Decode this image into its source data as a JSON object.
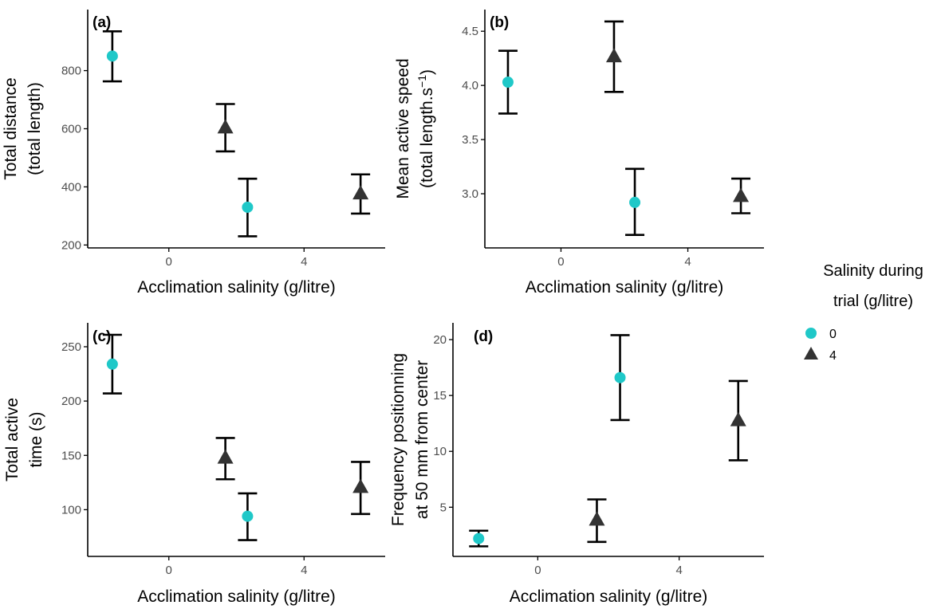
{
  "colors": {
    "series_0": "#1fc8c8",
    "series_4": "#333333",
    "axis": "#000000",
    "errorbar": "#000000"
  },
  "legend": {
    "title_line1": "Salinity during",
    "title_line2": "trial (g/litre)",
    "entries": [
      {
        "label": "0",
        "shape": "circle",
        "color": "#1fc8c8"
      },
      {
        "label": "4",
        "shape": "triangle",
        "color": "#333333"
      }
    ]
  },
  "chart_data": [
    {
      "type": "scatter",
      "panel": "(a)",
      "xlabel": "Acclimation salinity (g/litre)",
      "ylabel_lines": [
        "Total distance",
        "(total length)"
      ],
      "ylim": [
        190,
        1010
      ],
      "yticks": [
        200,
        400,
        600,
        800
      ],
      "ytick_labels": [
        "200",
        "400",
        "600",
        "800"
      ],
      "categories": [
        "0",
        "4"
      ],
      "series": [
        {
          "name": "0",
          "points": [
            {
              "category": "0",
              "y": 850,
              "ymin": 763,
              "ymax": 935
            },
            {
              "category": "4",
              "y": 330,
              "ymin": 230,
              "ymax": 428
            }
          ]
        },
        {
          "name": "4",
          "points": [
            {
              "category": "0",
              "y": 605,
              "ymin": 522,
              "ymax": 685
            },
            {
              "category": "4",
              "y": 378,
              "ymin": 308,
              "ymax": 443
            }
          ]
        }
      ]
    },
    {
      "type": "scatter",
      "panel": "(b)",
      "xlabel": "Acclimation salinity (g/litre)",
      "ylabel_lines": [
        "Mean active speed",
        "(total length.s^-1)"
      ],
      "ylim": [
        2.5,
        4.7
      ],
      "yticks": [
        3.0,
        3.5,
        4.0,
        4.5
      ],
      "ytick_labels": [
        "3.0",
        "3.5",
        "4.0",
        "4.5"
      ],
      "categories": [
        "0",
        "4"
      ],
      "series": [
        {
          "name": "0",
          "points": [
            {
              "category": "0",
              "y": 4.03,
              "ymin": 3.74,
              "ymax": 4.32
            },
            {
              "category": "4",
              "y": 2.92,
              "ymin": 2.62,
              "ymax": 3.23
            }
          ]
        },
        {
          "name": "4",
          "points": [
            {
              "category": "0",
              "y": 4.27,
              "ymin": 3.94,
              "ymax": 4.59
            },
            {
              "category": "4",
              "y": 2.98,
              "ymin": 2.82,
              "ymax": 3.14
            }
          ]
        }
      ]
    },
    {
      "type": "scatter",
      "panel": "(c)",
      "xlabel": "Acclimation salinity (g/litre)",
      "ylabel_lines": [
        "Total active",
        "time (s)"
      ],
      "ylim": [
        57,
        272
      ],
      "yticks": [
        100,
        150,
        200,
        250
      ],
      "ytick_labels": [
        "100",
        "150",
        "200",
        "250"
      ],
      "categories": [
        "0",
        "4"
      ],
      "series": [
        {
          "name": "0",
          "points": [
            {
              "category": "0",
              "y": 234,
              "ymin": 207,
              "ymax": 261
            },
            {
              "category": "4",
              "y": 94,
              "ymin": 72,
              "ymax": 115
            }
          ]
        },
        {
          "name": "4",
          "points": [
            {
              "category": "0",
              "y": 148,
              "ymin": 128,
              "ymax": 166
            },
            {
              "category": "4",
              "y": 121,
              "ymin": 96,
              "ymax": 144
            }
          ]
        }
      ]
    },
    {
      "type": "scatter",
      "panel": "(d)",
      "xlabel": "Acclimation salinity (g/litre)",
      "ylabel_lines": [
        "Frequency positionning",
        "at 50 mm from center"
      ],
      "ylim": [
        0.6,
        21.5
      ],
      "yticks": [
        5,
        10,
        15,
        20
      ],
      "ytick_labels": [
        "5",
        "10",
        "15",
        "20"
      ],
      "categories": [
        "0",
        "4"
      ],
      "series": [
        {
          "name": "0",
          "points": [
            {
              "category": "0",
              "y": 2.2,
              "ymin": 1.5,
              "ymax": 2.9
            },
            {
              "category": "4",
              "y": 16.6,
              "ymin": 12.8,
              "ymax": 20.4
            }
          ]
        },
        {
          "name": "4",
          "points": [
            {
              "category": "0",
              "y": 3.9,
              "ymin": 1.9,
              "ymax": 5.7
            },
            {
              "category": "4",
              "y": 12.8,
              "ymin": 9.2,
              "ymax": 16.3
            }
          ]
        }
      ]
    }
  ]
}
